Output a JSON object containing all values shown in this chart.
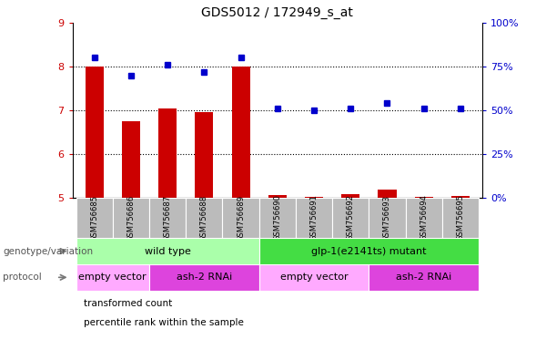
{
  "title": "GDS5012 / 172949_s_at",
  "samples": [
    "GSM756685",
    "GSM756686",
    "GSM756687",
    "GSM756688",
    "GSM756689",
    "GSM756690",
    "GSM756691",
    "GSM756692",
    "GSM756693",
    "GSM756694",
    "GSM756695"
  ],
  "transformed_count": [
    8.0,
    6.75,
    7.05,
    6.95,
    8.0,
    5.07,
    5.02,
    5.08,
    5.18,
    5.03,
    5.04
  ],
  "percentile_rank": [
    80,
    70,
    76,
    72,
    80,
    51,
    50,
    51,
    54,
    51,
    51
  ],
  "bar_color": "#cc0000",
  "dot_color": "#0000cc",
  "ylim_left": [
    5,
    9
  ],
  "ylim_right": [
    0,
    100
  ],
  "yticks_left": [
    5,
    6,
    7,
    8,
    9
  ],
  "yticks_right": [
    0,
    25,
    50,
    75,
    100
  ],
  "ylabel_left_color": "#cc0000",
  "ylabel_right_color": "#0000cc",
  "genotype_labels": [
    {
      "text": "wild type",
      "start": 0,
      "end": 4,
      "color": "#aaffaa"
    },
    {
      "text": "glp-1(e2141ts) mutant",
      "start": 5,
      "end": 10,
      "color": "#44dd44"
    }
  ],
  "protocol_labels": [
    {
      "text": "empty vector",
      "start": 0,
      "end": 1,
      "color": "#ffaaff"
    },
    {
      "text": "ash-2 RNAi",
      "start": 2,
      "end": 4,
      "color": "#dd44dd"
    },
    {
      "text": "empty vector",
      "start": 5,
      "end": 7,
      "color": "#ffaaff"
    },
    {
      "text": "ash-2 RNAi",
      "start": 8,
      "end": 10,
      "color": "#dd44dd"
    }
  ],
  "legend_items": [
    {
      "color": "#cc0000",
      "label": "transformed count"
    },
    {
      "color": "#0000cc",
      "label": "percentile rank within the sample"
    }
  ],
  "genotype_row_label": "genotype/variation",
  "protocol_row_label": "protocol",
  "bg_color": "#ffffff",
  "sample_bg": "#bbbbbb",
  "bar_width": 0.5
}
